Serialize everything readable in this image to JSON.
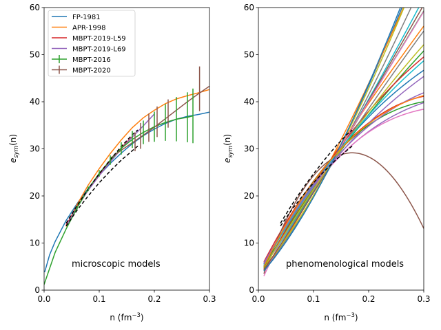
{
  "chart_data": [
    {
      "type": "line",
      "xlabel_base": "n (fm",
      "xlabel_sup": "−3",
      "xlabel_end": ")",
      "ylabel_main": "e",
      "ylabel_sub": "sym",
      "ylabel_end": "(n)",
      "xlim": [
        0,
        0.3
      ],
      "ylim": [
        0,
        60
      ],
      "xticks": [
        "0.0",
        "0.1",
        "0.2",
        "0.3"
      ],
      "yticks": [
        "0",
        "10",
        "20",
        "30",
        "40",
        "50",
        "60"
      ],
      "annotation": "microscopic models",
      "legend_position": "top-left",
      "series": [
        {
          "name": "FP-1981",
          "color": "#1f77b4",
          "x": [
            0.001,
            0.01,
            0.02,
            0.04,
            0.06,
            0.08,
            0.1,
            0.12,
            0.14,
            0.16,
            0.18,
            0.2,
            0.22,
            0.24,
            0.26,
            0.28,
            0.3
          ],
          "y": [
            3.8,
            7.5,
            10.3,
            14.8,
            18.4,
            21.6,
            24.4,
            26.9,
            29.1,
            31.1,
            32.8,
            34.2,
            35.4,
            36.3,
            36.9,
            37.3,
            37.8
          ]
        },
        {
          "name": "APR-1998",
          "color": "#ff7f0e",
          "x": [
            0.04,
            0.06,
            0.08,
            0.1,
            0.12,
            0.14,
            0.16,
            0.18,
            0.2,
            0.22,
            0.24,
            0.26,
            0.28,
            0.3
          ],
          "y": [
            13.5,
            18.2,
            22.3,
            25.8,
            29.0,
            31.9,
            34.5,
            36.6,
            38.2,
            39.6,
            40.6,
            41.3,
            41.9,
            42.6
          ]
        },
        {
          "name": "MBPT-2019-L59",
          "color": "#d62728",
          "x": [
            0.04,
            0.06,
            0.08,
            0.1,
            0.12,
            0.14,
            0.16
          ],
          "y": [
            13.8,
            17.8,
            21.3,
            24.6,
            27.5,
            30.2,
            32.6
          ]
        },
        {
          "name": "MBPT-2019-L69",
          "color": "#9467bd",
          "x": [
            0.04,
            0.06,
            0.08,
            0.1,
            0.12,
            0.14,
            0.16,
            0.18,
            0.2
          ],
          "y": [
            13.6,
            17.6,
            21.2,
            24.3,
            27.2,
            30.0,
            32.5,
            34.9,
            37.4
          ]
        },
        {
          "name": "MBPT-2016",
          "color": "#2ca02c",
          "errorbars": true,
          "x": [
            0.0,
            0.02,
            0.04,
            0.06,
            0.08,
            0.1,
            0.12,
            0.14,
            0.16,
            0.18,
            0.2,
            0.22,
            0.24,
            0.26,
            0.27
          ],
          "y": [
            1.2,
            8.0,
            13.0,
            17.5,
            21.5,
            24.8,
            27.6,
            30.1,
            32.0,
            33.5,
            34.7,
            35.6,
            36.3,
            36.7,
            37.0
          ],
          "err": [
            0,
            0,
            0,
            0.3,
            0.5,
            0.7,
            1.0,
            1.3,
            1.8,
            2.5,
            3.2,
            3.9,
            4.7,
            5.3,
            5.8
          ]
        },
        {
          "name": "MBPT-2020",
          "color": "#8c564b",
          "errorbars": true,
          "x": [
            0.12,
            0.14,
            0.16,
            0.18,
            0.2,
            0.22,
            0.24,
            0.26,
            0.28,
            0.3
          ],
          "y": [
            28.0,
            29.7,
            31.3,
            32.9,
            34.6,
            36.4,
            38.2,
            40.0,
            41.7,
            43.3
          ],
          "err": [
            0.5,
            0.8,
            1.1,
            1.4,
            1.7,
            2.0,
            2.6,
            3.4,
            5.2,
            0
          ],
          "err_x": [
            0.165,
            0.175,
            0.19,
            0.205,
            0.225,
            0.282
          ],
          "err_lo": [
            29.5,
            30.0,
            31.5,
            32.5,
            34.5,
            38.0
          ],
          "err_hi": [
            33.5,
            35.5,
            37.5,
            39.0,
            40.5,
            47.5
          ]
        }
      ],
      "dashed_band": {
        "color": "#000000",
        "upper_x": [
          0.04,
          0.06,
          0.08,
          0.1,
          0.12,
          0.14,
          0.16,
          0.17
        ],
        "upper_y": [
          14.2,
          18.0,
          21.5,
          24.7,
          27.7,
          30.5,
          33.0,
          34.0
        ],
        "lower_x": [
          0.04,
          0.06,
          0.08,
          0.1,
          0.12,
          0.14,
          0.16,
          0.17
        ],
        "lower_y": [
          13.6,
          17.0,
          20.0,
          22.8,
          25.3,
          27.6,
          29.6,
          30.6
        ]
      }
    },
    {
      "type": "line",
      "xlabel_base": "n (fm",
      "xlabel_sup": "−3",
      "xlabel_end": ")",
      "ylabel_main": "e",
      "ylabel_sub": "sym",
      "ylabel_end": "(n)",
      "xlim": [
        0,
        0.3
      ],
      "ylim": [
        0,
        60
      ],
      "xticks": [
        "0.0",
        "0.1",
        "0.2",
        "0.3"
      ],
      "yticks": [
        "0",
        "10",
        "20",
        "30",
        "40",
        "50",
        "60"
      ],
      "annotation": "phenomenological models",
      "curve_family": {
        "n_start": 0.01,
        "n_sat": 0.16,
        "curves": [
          {
            "color": "#1f77b4",
            "J": 32.5,
            "L": 125,
            "K": 60,
            "y0": 4.5
          },
          {
            "color": "#ff7f0e",
            "J": 33.5,
            "L": 120,
            "K": 30,
            "y0": 4.2
          },
          {
            "color": "#2ca02c",
            "J": 32.0,
            "L": 95,
            "K": -10,
            "y0": 5.0
          },
          {
            "color": "#d62728",
            "J": 31.5,
            "L": 55,
            "K": -150,
            "y0": 6.0
          },
          {
            "color": "#9467bd",
            "J": 30.5,
            "L": 45,
            "K": -90,
            "y0": 5.5
          },
          {
            "color": "#8c564b",
            "J": 29.5,
            "L": 5,
            "K": -420,
            "y0": 3.5
          },
          {
            "color": "#e377c2",
            "J": 31.0,
            "L": 40,
            "K": -100,
            "y0": 3.0
          },
          {
            "color": "#7f7f7f",
            "J": 32.0,
            "L": 110,
            "K": 40,
            "y0": 4.0
          },
          {
            "color": "#bcbd22",
            "J": 32.5,
            "L": 118,
            "K": 80,
            "y0": 4.8
          },
          {
            "color": "#17becf",
            "J": 32.0,
            "L": 100,
            "K": 20,
            "y0": 5.2
          },
          {
            "color": "#1f77b4",
            "J": 32.0,
            "L": 62,
            "K": -80,
            "y0": 5.5
          },
          {
            "color": "#ff7f0e",
            "J": 33.0,
            "L": 82,
            "K": -20,
            "y0": 4.6
          },
          {
            "color": "#2ca02c",
            "J": 31.5,
            "L": 72,
            "K": -40,
            "y0": 5.0
          },
          {
            "color": "#d62728",
            "J": 32.5,
            "L": 70,
            "K": -80,
            "y0": 4.4
          },
          {
            "color": "#9467bd",
            "J": 31.0,
            "L": 58,
            "K": -60,
            "y0": 5.8
          },
          {
            "color": "#8c564b",
            "J": 32.0,
            "L": 98,
            "K": 0,
            "y0": 4.3
          },
          {
            "color": "#e377c2",
            "J": 32.5,
            "L": 90,
            "K": 10,
            "y0": 4.9
          },
          {
            "color": "#7f7f7f",
            "J": 31.5,
            "L": 85,
            "K": -30,
            "y0": 5.1
          },
          {
            "color": "#bcbd22",
            "J": 31.5,
            "L": 78,
            "K": -50,
            "y0": 4.7
          },
          {
            "color": "#17becf",
            "J": 32.0,
            "L": 66,
            "K": -60,
            "y0": 5.3
          },
          {
            "color": "#2ca02c",
            "J": 32.0,
            "L": 45,
            "K": -120,
            "y0": 4.8
          },
          {
            "color": "#9467bd",
            "J": 31.0,
            "L": 52,
            "K": -100,
            "y0": 5.6
          },
          {
            "color": "#1f77b4",
            "J": 32.5,
            "L": 128,
            "K": 70,
            "y0": 4.1
          },
          {
            "color": "#ff7f0e",
            "J": 32.0,
            "L": 48,
            "K": -110,
            "y0": 5.0
          }
        ]
      },
      "dashed_band": {
        "color": "#000000",
        "upper_x": [
          0.04,
          0.06,
          0.08,
          0.1,
          0.12,
          0.14,
          0.16,
          0.17
        ],
        "upper_y": [
          14.2,
          18.0,
          21.5,
          24.7,
          27.7,
          30.5,
          33.0,
          34.0
        ],
        "lower_x": [
          0.04,
          0.06,
          0.08,
          0.1,
          0.12,
          0.14,
          0.16,
          0.17
        ],
        "lower_y": [
          13.6,
          17.0,
          20.0,
          22.8,
          25.3,
          27.6,
          29.6,
          30.6
        ]
      }
    }
  ]
}
